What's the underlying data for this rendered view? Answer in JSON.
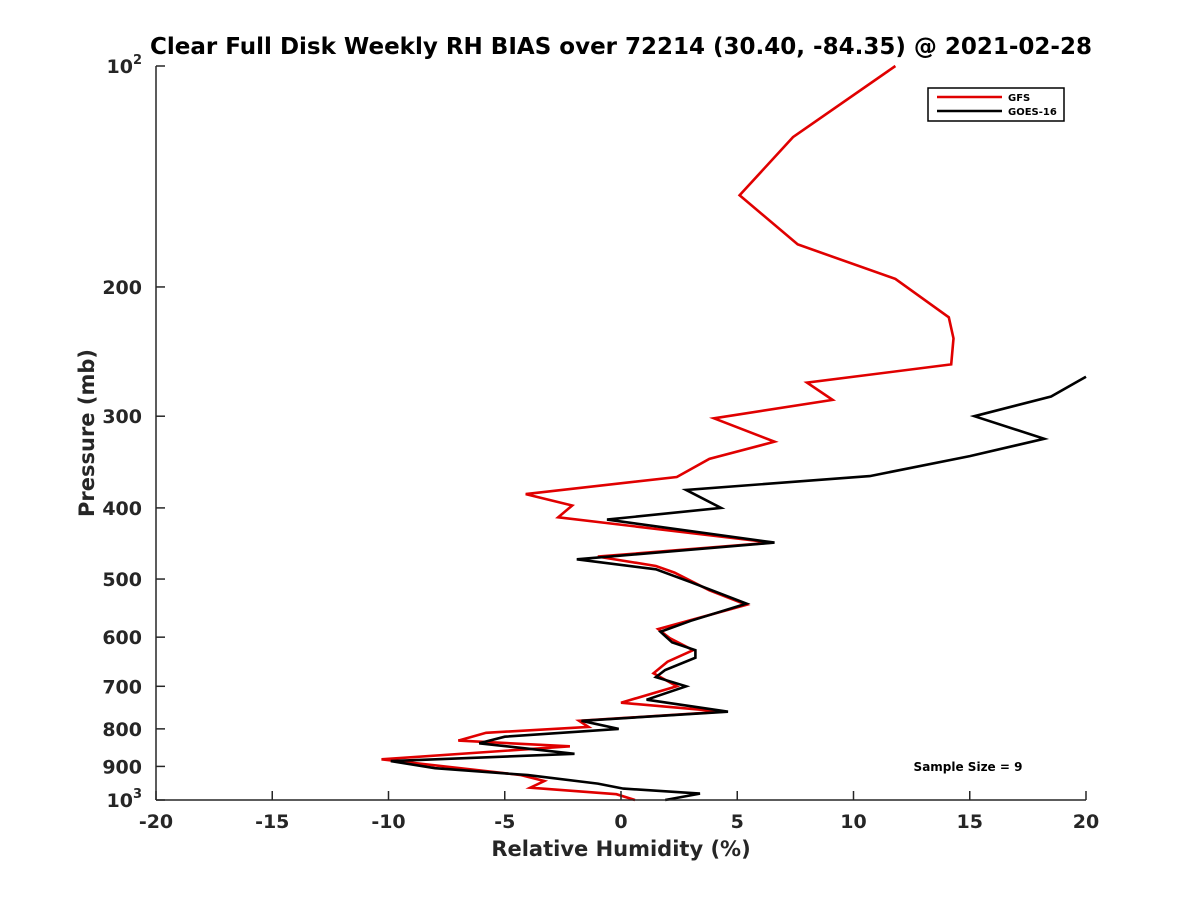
{
  "chart_data": {
    "type": "line",
    "title": "Clear Full Disk Weekly RH BIAS over 72214 (30.40, -84.35) @ 2021-02-28",
    "xlabel": "Relative Humidity (%)",
    "ylabel": "Pressure (mb)",
    "xlim": [
      -20,
      20
    ],
    "ylim": [
      100,
      1000
    ],
    "yscale": "log",
    "y_reversed": true,
    "xticks": [
      -20,
      -15,
      -10,
      -5,
      0,
      5,
      10,
      15,
      20
    ],
    "xtick_labels": [
      "-20",
      "-15",
      "-10",
      "-5",
      "0",
      "5",
      "10",
      "15",
      "20"
    ],
    "yticks": [
      {
        "value": 100,
        "base": "10",
        "exp": "2"
      },
      {
        "value": 200,
        "label": "200"
      },
      {
        "value": 300,
        "label": "300"
      },
      {
        "value": 400,
        "label": "400"
      },
      {
        "value": 500,
        "label": "500"
      },
      {
        "value": 600,
        "label": "600"
      },
      {
        "value": 700,
        "label": "700"
      },
      {
        "value": 800,
        "label": "800"
      },
      {
        "value": 900,
        "label": "900"
      },
      {
        "value": 1000,
        "base": "10",
        "exp": "3"
      }
    ],
    "legend": {
      "placement": "top-right",
      "entries": [
        "GFS",
        "GOES-16"
      ]
    },
    "annotation": "Sample Size = 9",
    "series": [
      {
        "name": "GFS",
        "color": "#e00000",
        "points": [
          [
            11.8,
            100
          ],
          [
            7.4,
            125
          ],
          [
            5.1,
            150
          ],
          [
            7.6,
            175
          ],
          [
            11.8,
            195
          ],
          [
            14.1,
            220
          ],
          [
            14.3,
            235
          ],
          [
            14.2,
            255
          ],
          [
            8.0,
            270
          ],
          [
            9.1,
            285
          ],
          [
            4.0,
            302
          ],
          [
            6.6,
            325
          ],
          [
            3.8,
            343
          ],
          [
            2.4,
            363
          ],
          [
            -4.1,
            383
          ],
          [
            -2.1,
            397
          ],
          [
            -2.7,
            412
          ],
          [
            6.5,
            446
          ],
          [
            -1.0,
            466
          ],
          [
            1.5,
            480
          ],
          [
            2.3,
            490
          ],
          [
            3.8,
            518
          ],
          [
            5.4,
            542
          ],
          [
            1.6,
            585
          ],
          [
            2.1,
            602
          ],
          [
            3.1,
            625
          ],
          [
            2.0,
            648
          ],
          [
            1.4,
            672
          ],
          [
            2.4,
            700
          ],
          [
            0.0,
            737
          ],
          [
            4.4,
            758
          ],
          [
            -1.8,
            780
          ],
          [
            -1.4,
            795
          ],
          [
            -5.8,
            810
          ],
          [
            -7.0,
            830
          ],
          [
            -2.2,
            845
          ],
          [
            -10.3,
            880
          ],
          [
            -4.3,
            925
          ],
          [
            -3.3,
            942
          ],
          [
            -3.9,
            962
          ],
          [
            -0.2,
            982
          ],
          [
            0.6,
            1000
          ]
        ]
      },
      {
        "name": "GOES-16",
        "color": "#000000",
        "points": [
          [
            20.0,
            265
          ],
          [
            18.5,
            282
          ],
          [
            15.2,
            300
          ],
          [
            18.2,
            322
          ],
          [
            15.0,
            340
          ],
          [
            10.7,
            362
          ],
          [
            2.8,
            378
          ],
          [
            4.3,
            400
          ],
          [
            -0.6,
            415
          ],
          [
            6.6,
            446
          ],
          [
            -1.9,
            470
          ],
          [
            1.5,
            485
          ],
          [
            3.0,
            505
          ],
          [
            5.4,
            540
          ],
          [
            3.0,
            570
          ],
          [
            1.7,
            590
          ],
          [
            2.2,
            610
          ],
          [
            3.2,
            625
          ],
          [
            3.2,
            640
          ],
          [
            1.9,
            665
          ],
          [
            1.5,
            680
          ],
          [
            2.8,
            700
          ],
          [
            1.1,
            730
          ],
          [
            4.6,
            758
          ],
          [
            -1.7,
            780
          ],
          [
            -0.1,
            800
          ],
          [
            -5.0,
            820
          ],
          [
            -6.1,
            837
          ],
          [
            -2.0,
            865
          ],
          [
            -9.9,
            885
          ],
          [
            -8.0,
            905
          ],
          [
            -4.0,
            925
          ],
          [
            -1.0,
            950
          ],
          [
            0.1,
            965
          ],
          [
            3.4,
            980
          ],
          [
            1.9,
            1000
          ]
        ]
      }
    ]
  }
}
